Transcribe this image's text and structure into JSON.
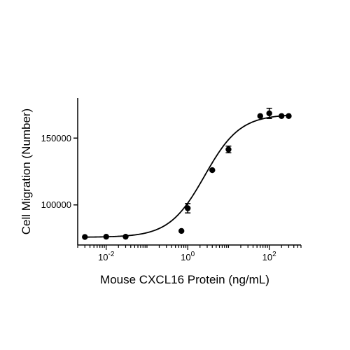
{
  "chart_data": {
    "type": "scatter",
    "title": "",
    "xlabel": "Mouse CXCL16 Protein (ng/mL)",
    "ylabel": "Cell Migration (Number)",
    "xscale": "log",
    "xlim": [
      0.002,
      600
    ],
    "ylim": [
      70000,
      180000
    ],
    "x_ticks": [
      {
        "value": 0.01,
        "base": "10",
        "exp": "-2"
      },
      {
        "value": 1,
        "base": "10",
        "exp": "0"
      },
      {
        "value": 100,
        "base": "10",
        "exp": "2"
      }
    ],
    "y_ticks": [
      {
        "value": 100000,
        "label": "100000"
      },
      {
        "value": 150000,
        "label": "150000"
      }
    ],
    "points": [
      {
        "x": 0.003,
        "y": 76000,
        "err": 0
      },
      {
        "x": 0.01,
        "y": 76200,
        "err": 0
      },
      {
        "x": 0.03,
        "y": 76200,
        "err": 0
      },
      {
        "x": 0.7,
        "y": 80500,
        "err": 0
      },
      {
        "x": 1.0,
        "y": 97500,
        "err": 3500
      },
      {
        "x": 4.0,
        "y": 126000,
        "err": 0
      },
      {
        "x": 10,
        "y": 141500,
        "err": 2500
      },
      {
        "x": 60,
        "y": 166500,
        "err": 0
      },
      {
        "x": 100,
        "y": 168500,
        "err": 3800
      },
      {
        "x": 200,
        "y": 166500,
        "err": 0
      },
      {
        "x": 300,
        "y": 166500,
        "err": 0
      }
    ],
    "fit": {
      "bottom": 75800,
      "top": 167800,
      "ec50": 2.6,
      "hill": 1.0
    },
    "grid": false,
    "legend": "none",
    "colors": {
      "points": "#000000",
      "line": "#000000",
      "axis": "#000000"
    }
  }
}
